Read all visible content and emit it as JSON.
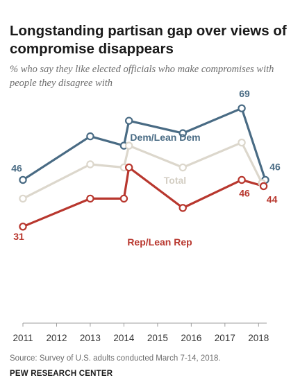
{
  "title": "Longstanding partisan gap over views of compromise disappears",
  "subtitle": "% who say they like elected officials who make compromises with people they disagree with",
  "source": "Survey of U.S. adults conducted March 7-14, 2018.",
  "brand": "PEW RESEARCH CENTER",
  "chart_data": {
    "type": "line",
    "x_ticks": [
      "2011",
      "2012",
      "2013",
      "2014",
      "2015",
      "2016",
      "2017",
      "2018"
    ],
    "x_range": [
      2011,
      2018.2
    ],
    "y_range": [
      0,
      100
    ],
    "series": [
      {
        "name": "Dem/Lean Dem",
        "color": "#496b84",
        "points": [
          {
            "x": 2011.0,
            "y": 46
          },
          {
            "x": 2013.0,
            "y": 60
          },
          {
            "x": 2014.0,
            "y": 57
          },
          {
            "x": 2014.15,
            "y": 65
          },
          {
            "x": 2015.75,
            "y": 61
          },
          {
            "x": 2017.5,
            "y": 69
          },
          {
            "x": 2018.2,
            "y": 46
          }
        ],
        "labels": [
          {
            "index": 0,
            "text": "46"
          },
          {
            "index": 5,
            "text": "69"
          },
          {
            "index": 6,
            "text": "46"
          }
        ]
      },
      {
        "name": "Total",
        "color": "#dcd7cc",
        "points": [
          {
            "x": 2011.0,
            "y": 40
          },
          {
            "x": 2013.0,
            "y": 51
          },
          {
            "x": 2014.0,
            "y": 50
          },
          {
            "x": 2014.15,
            "y": 57
          },
          {
            "x": 2015.75,
            "y": 50
          },
          {
            "x": 2017.5,
            "y": 58
          },
          {
            "x": 2018.1,
            "y": 45
          }
        ],
        "labels": []
      },
      {
        "name": "Rep/Lean Rep",
        "color": "#b8372e",
        "points": [
          {
            "x": 2011.0,
            "y": 31
          },
          {
            "x": 2013.0,
            "y": 40
          },
          {
            "x": 2014.0,
            "y": 40
          },
          {
            "x": 2014.15,
            "y": 50
          },
          {
            "x": 2015.75,
            "y": 37
          },
          {
            "x": 2017.5,
            "y": 46
          },
          {
            "x": 2018.15,
            "y": 44
          }
        ],
        "labels": [
          {
            "index": 0,
            "text": "31"
          },
          {
            "index": 5,
            "text": "46"
          },
          {
            "index": 6,
            "text": "44"
          }
        ]
      }
    ]
  }
}
